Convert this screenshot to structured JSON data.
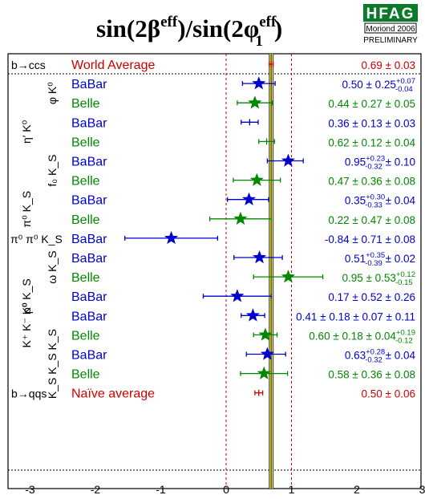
{
  "chart_data": {
    "type": "scatter",
    "title": {
      "base": "sin(2",
      "beta": "β",
      "eff": "eff",
      "mid": ")/sin(2",
      "phi": "φ",
      "one": "1",
      "end": ")"
    },
    "logo": {
      "name": "HFAG",
      "sub": "Moriond 2006",
      "status": "PRELIMINARY"
    },
    "xlim": [
      -3,
      3
    ],
    "x_ticks": [
      "-3",
      "-2",
      "-1",
      "0",
      "1",
      "2",
      "3"
    ],
    "world_average": {
      "value": 0.69,
      "err": 0.03
    },
    "groups": [
      {
        "name": "b→ccs",
        "rows": [
          0
        ]
      },
      {
        "name": "φ K⁰",
        "rows": [
          1,
          2
        ]
      },
      {
        "name": "η′ K⁰",
        "rows": [
          3,
          4
        ]
      },
      {
        "name": "f₀ K_S",
        "rows": [
          5,
          6
        ]
      },
      {
        "name": "π⁰ K_S",
        "rows": [
          7,
          8
        ]
      },
      {
        "name": "π⁰ π⁰ K_S",
        "rows": [
          9
        ]
      },
      {
        "name": "ω K_S",
        "rows": [
          10,
          11
        ]
      },
      {
        "name": "ρ⁰ K_S",
        "rows": [
          12
        ]
      },
      {
        "name": "K⁺ K⁻ K⁰",
        "rows": [
          13
        ]
      },
      {
        "name": "K_S K_S K_S",
        "rows": [
          14,
          15,
          16
        ]
      },
      {
        "name": "b→qqs",
        "rows": [
          17
        ]
      }
    ],
    "series": [
      {
        "label": "World Average",
        "value": 0.69,
        "err_minus": 0.03,
        "err_plus": 0.03,
        "text": "0.69 ± 0.03",
        "color": "#cc0000",
        "marker": "none"
      },
      {
        "label": "BaBar",
        "value": 0.5,
        "err_minus": 0.25,
        "err_plus": 0.25,
        "text": "0.50 ± 0.25",
        "sup": "+0.07",
        "sub": "-0.04",
        "color": "#0000cc",
        "marker": "star"
      },
      {
        "label": "Belle",
        "value": 0.44,
        "err_minus": 0.27,
        "err_plus": 0.27,
        "text": "0.44 ± 0.27 ± 0.05",
        "color": "#008800",
        "marker": "star"
      },
      {
        "label": "BaBar",
        "value": 0.36,
        "err_minus": 0.13,
        "err_plus": 0.13,
        "text": "0.36 ± 0.13 ± 0.03",
        "color": "#0000cc",
        "marker": "none"
      },
      {
        "label": "Belle",
        "value": 0.62,
        "err_minus": 0.12,
        "err_plus": 0.12,
        "text": "0.62 ± 0.12 ± 0.04",
        "color": "#008800",
        "marker": "none"
      },
      {
        "label": "BaBar",
        "value": 0.95,
        "err_minus": 0.32,
        "err_plus": 0.23,
        "text": "0.95",
        "sup": "+0.23",
        "sub": "-0.32",
        "tail": " ± 0.10",
        "color": "#0000cc",
        "marker": "star"
      },
      {
        "label": "Belle",
        "value": 0.47,
        "err_minus": 0.36,
        "err_plus": 0.36,
        "text": "0.47 ± 0.36 ± 0.08",
        "color": "#008800",
        "marker": "star"
      },
      {
        "label": "BaBar",
        "value": 0.35,
        "err_minus": 0.33,
        "err_plus": 0.3,
        "text": "0.35",
        "sup": "+0.30",
        "sub": "-0.33",
        "tail": " ± 0.04",
        "color": "#0000cc",
        "marker": "star"
      },
      {
        "label": "Belle",
        "value": 0.22,
        "err_minus": 0.47,
        "err_plus": 0.47,
        "text": "0.22 ± 0.47 ± 0.08",
        "color": "#008800",
        "marker": "star"
      },
      {
        "label": "BaBar",
        "value": -0.84,
        "err_minus": 0.71,
        "err_plus": 0.71,
        "text": "-0.84 ± 0.71 ± 0.08",
        "color": "#0000cc",
        "marker": "star"
      },
      {
        "label": "BaBar",
        "value": 0.51,
        "err_minus": 0.39,
        "err_plus": 0.35,
        "text": "0.51",
        "sup": "+0.35",
        "sub": "-0.39",
        "tail": " ± 0.02",
        "color": "#0000cc",
        "marker": "star"
      },
      {
        "label": "Belle",
        "value": 0.95,
        "err_minus": 0.53,
        "err_plus": 0.53,
        "text": "0.95 ± 0.53",
        "sup": "+0.12",
        "sub": "-0.15",
        "color": "#008800",
        "marker": "star"
      },
      {
        "label": "BaBar",
        "value": 0.17,
        "err_minus": 0.52,
        "err_plus": 0.52,
        "text": "0.17 ± 0.52 ± 0.26",
        "color": "#0000cc",
        "marker": "star"
      },
      {
        "label": "BaBar",
        "value": 0.41,
        "err_minus": 0.18,
        "err_plus": 0.18,
        "text": "0.41 ± 0.18 ± 0.07 ± 0.11",
        "color": "#0000cc",
        "marker": "star"
      },
      {
        "label": "Belle",
        "value": 0.6,
        "err_minus": 0.18,
        "err_plus": 0.18,
        "text": "0.60 ± 0.18 ± 0.04",
        "sup": "+0.19",
        "sub": "-0.12",
        "color": "#008800",
        "marker": "star"
      },
      {
        "label": "BaBar",
        "value": 0.63,
        "err_minus": 0.32,
        "err_plus": 0.28,
        "text": "0.63",
        "sup": "+0.28",
        "sub": "-0.32",
        "tail": " ± 0.04",
        "color": "#0000cc",
        "marker": "star"
      },
      {
        "label": "Belle",
        "value": 0.58,
        "err_minus": 0.36,
        "err_plus": 0.36,
        "text": "0.58 ± 0.36 ± 0.08",
        "color": "#008800",
        "marker": "star"
      },
      {
        "label": "Naïve average",
        "value": 0.5,
        "err_minus": 0.06,
        "err_plus": 0.06,
        "text": "0.50 ± 0.06",
        "color": "#cc0000",
        "marker": "none"
      }
    ]
  }
}
